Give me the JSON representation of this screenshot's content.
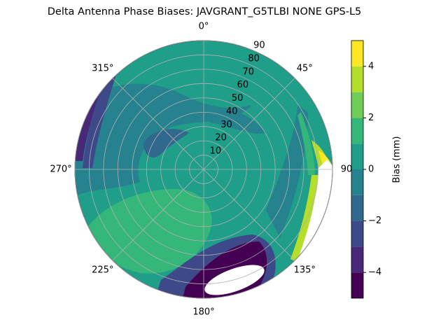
{
  "chart_data": {
    "type": "polar",
    "title": "Delta Antenna Phase Biases: JAVGRANT_G5TLBI NONE GPS-L5",
    "rlim": [
      0,
      90
    ],
    "rticks": [
      10,
      20,
      30,
      40,
      50,
      60,
      70,
      80,
      90
    ],
    "thetaticks": [
      {
        "value": 0,
        "label": "0°"
      },
      {
        "value": 45,
        "label": "45°"
      },
      {
        "value": 90,
        "label": "90"
      },
      {
        "value": 135,
        "label": "135°"
      },
      {
        "value": 180,
        "label": "180°"
      },
      {
        "value": 225,
        "label": "225°"
      },
      {
        "value": 270,
        "label": "270°"
      },
      {
        "value": 315,
        "label": "315°"
      }
    ],
    "grid": true,
    "colorbar": {
      "label": "Bias (mm)",
      "lim": [
        -5,
        5
      ],
      "levels": [
        -5,
        -4,
        -3,
        -2,
        -1,
        0,
        1,
        2,
        3,
        4,
        5
      ],
      "colors": [
        "#440154",
        "#482878",
        "#3e4989",
        "#31688e",
        "#26828e",
        "#1f9e89",
        "#35b779",
        "#6ece58",
        "#b5de2b",
        "#fde725"
      ],
      "ticks": [
        {
          "value": -4,
          "label": "−4"
        },
        {
          "value": -2,
          "label": "−2"
        },
        0,
        2,
        4
      ]
    }
  }
}
